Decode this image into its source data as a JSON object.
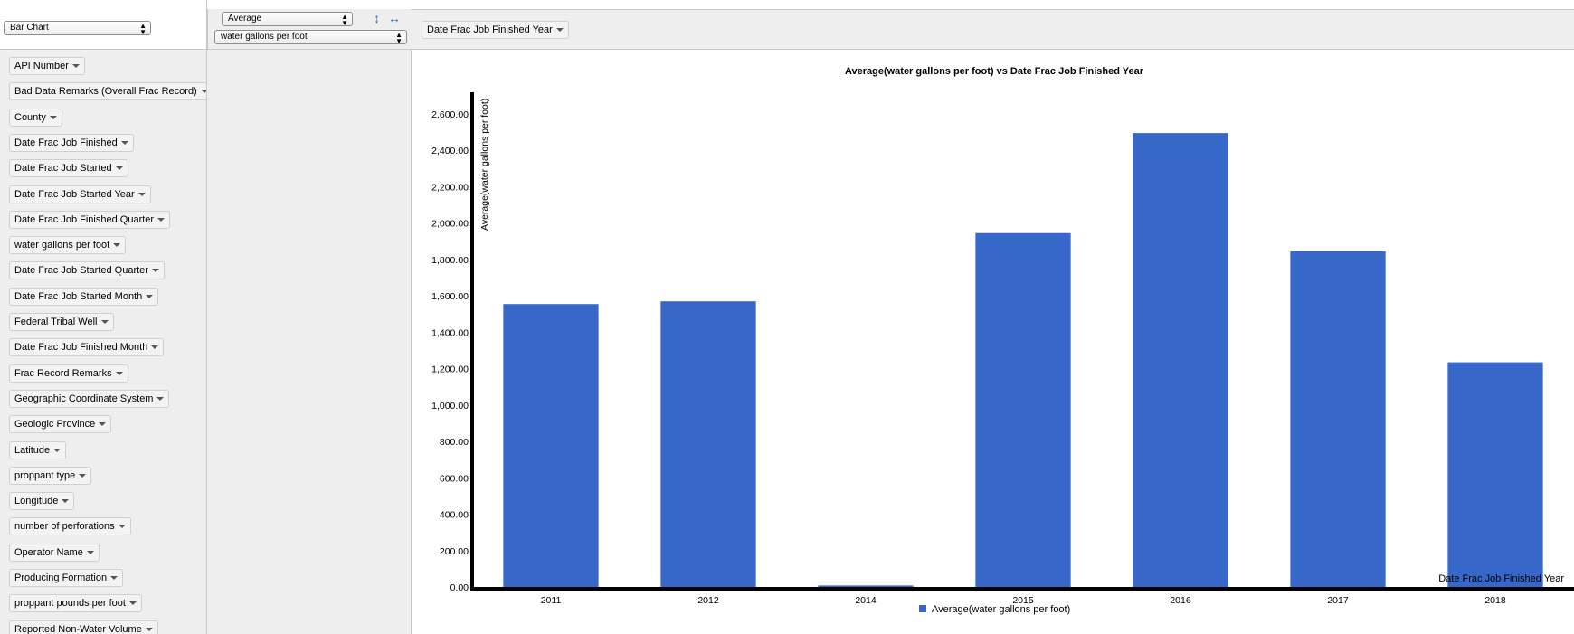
{
  "renderer": {
    "selected": "Bar Chart"
  },
  "aggregator": {
    "selected": "Average",
    "attribute": "water gallons per foot"
  },
  "columns": [
    {
      "label": "Date Frac Job Finished Year"
    }
  ],
  "attributes": [
    "API Number",
    "Bad Data Remarks (Overall Frac Record)",
    "County",
    "Date Frac Job Finished",
    "Date Frac Job Started",
    "Date Frac Job Started Year",
    "Date Frac Job Finished Quarter",
    "water gallons per foot",
    "Date Frac Job Started Quarter",
    "Date Frac Job Started Month",
    "Federal Tribal Well",
    "Date Frac Job Finished Month",
    "Frac Record Remarks",
    "Geographic Coordinate System",
    "Geologic Province",
    "Latitude",
    "proppant type",
    "Longitude",
    "number of perforations",
    "Operator Name",
    "Producing Formation",
    "proppant pounds per foot",
    "Reported Non-Water Volume"
  ],
  "chart_data": {
    "type": "bar",
    "title": "Average(water gallons per foot) vs Date Frac Job Finished Year",
    "xlabel": "Date Frac Job Finished Year",
    "ylabel": "Average(water gallons per foot)",
    "categories": [
      "2011",
      "2012",
      "2014",
      "2015",
      "2016",
      "2017",
      "2018"
    ],
    "series": [
      {
        "name": "Average(water gallons per foot)",
        "values": [
          1555,
          1570,
          8,
          1945,
          2495,
          1845,
          1235
        ],
        "color": "#3767c8"
      }
    ],
    "ylim": [
      0,
      2600
    ],
    "yticks": [
      "0.00",
      "200.00",
      "400.00",
      "600.00",
      "800.00",
      "1,000.00",
      "1,200.00",
      "1,400.00",
      "1,600.00",
      "1,800.00",
      "2,000.00",
      "2,200.00",
      "2,400.00",
      "2,600.00"
    ],
    "legend": "bottom",
    "grid": false
  }
}
